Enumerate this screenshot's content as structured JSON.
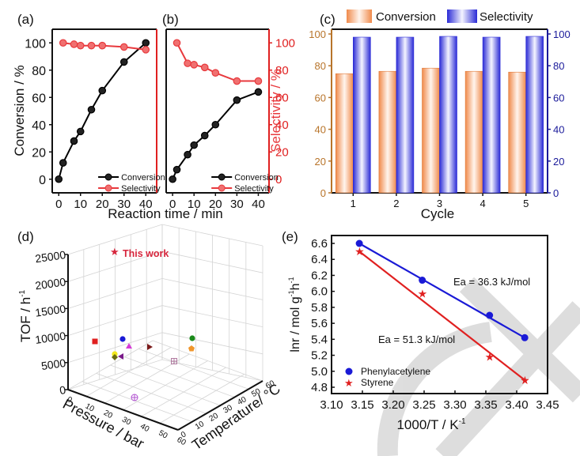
{
  "chart_data": [
    {
      "panel": "(a)",
      "type": "line",
      "xlabel": "Reaction time / min",
      "ylabel": "Conversion / %",
      "xlim": [
        -3,
        45
      ],
      "ylim": [
        -10,
        110
      ],
      "xticks": [
        0,
        10,
        20,
        30,
        40
      ],
      "yticks": [
        0,
        20,
        40,
        60,
        80,
        100
      ],
      "legend": "bottom-right",
      "series": [
        {
          "name": "Conversion",
          "color": "#000000",
          "x": [
            0,
            2,
            7,
            10,
            15,
            20,
            30,
            40
          ],
          "y": [
            0,
            12,
            28,
            35,
            51,
            65,
            86,
            100
          ]
        },
        {
          "name": "Selectivity",
          "color": "#e8393d",
          "x": [
            2,
            7,
            10,
            15,
            20,
            30,
            40
          ],
          "y": [
            100,
            99,
            98,
            98,
            98,
            97,
            95
          ]
        }
      ]
    },
    {
      "panel": "(b)",
      "type": "line",
      "xlabel": "Reaction time / min",
      "ylabel": "Selectivity / %",
      "xlim": [
        -3,
        45
      ],
      "ylim": [
        -10,
        110
      ],
      "xticks": [
        0,
        10,
        20,
        30,
        40
      ],
      "yticks": [
        0,
        20,
        40,
        60,
        80,
        100
      ],
      "legend": "bottom-right",
      "series": [
        {
          "name": "Conversion",
          "color": "#000000",
          "x": [
            0,
            2,
            7,
            10,
            15,
            20,
            30,
            40
          ],
          "y": [
            0,
            7,
            18,
            25,
            32,
            40,
            58,
            64
          ]
        },
        {
          "name": "Selectivity",
          "color": "#e8393d",
          "x": [
            2,
            7,
            10,
            15,
            20,
            30,
            40
          ],
          "y": [
            100,
            85,
            84,
            82,
            78,
            72,
            72
          ]
        }
      ]
    },
    {
      "panel": "(c)",
      "type": "bar",
      "xlabel": "Cycle",
      "ylabel_left": "",
      "ylabel_right": "",
      "categories": [
        "1",
        "2",
        "3",
        "4",
        "5"
      ],
      "ylim": [
        0,
        100
      ],
      "yticks": [
        0,
        20,
        40,
        60,
        80,
        100
      ],
      "legend": "top",
      "series": [
        {
          "name": "Conversion",
          "color": "#f08a4b",
          "values": [
            75,
            76.5,
            78.5,
            76.5,
            76
          ]
        },
        {
          "name": "Selectivity",
          "color": "#2b2bd6",
          "values": [
            98,
            98,
            98.5,
            98,
            98.5
          ]
        }
      ]
    },
    {
      "panel": "(d)",
      "type": "scatter",
      "projection": "3d",
      "xlabel": "Pressure / bar",
      "ylabel": "Temperature/ °C",
      "zlabel": "TOF / h⁻¹",
      "zticks": [
        "0",
        "5000",
        "10000",
        "15000",
        "20000",
        "25000"
      ],
      "xticks": [
        "0",
        "10",
        "20",
        "30",
        "40",
        "50",
        "60"
      ],
      "yticks": [
        "0",
        "10",
        "20",
        "30",
        "40",
        "50",
        "60"
      ],
      "annotation": "This work",
      "points": [
        {
          "marker": "star",
          "color": "#d7263d",
          "label": "This work"
        },
        {
          "marker": "square",
          "color": "#e02020"
        },
        {
          "marker": "circle",
          "color": "#1a1ad6"
        },
        {
          "marker": "triangle-up",
          "color": "#d63ad6"
        },
        {
          "marker": "triangle-right",
          "color": "#7a1a1a"
        },
        {
          "marker": "circle",
          "color": "#f2e81c"
        },
        {
          "marker": "diamond",
          "color": "#6b6b10"
        },
        {
          "marker": "triangle-left",
          "color": "#7a1a8a"
        },
        {
          "marker": "circle",
          "color": "#1b8a1b"
        },
        {
          "marker": "pentagon",
          "color": "#f0962b"
        },
        {
          "marker": "crossed-square",
          "color": "#b07aa0"
        },
        {
          "marker": "crossed-circle",
          "color": "#b050d0"
        }
      ]
    },
    {
      "panel": "(e)",
      "type": "scatter",
      "xlabel": "1000/T / K⁻¹",
      "ylabel": "lnr / mol g⁻¹h⁻¹",
      "xlim": [
        3.1,
        3.45
      ],
      "ylim": [
        4.7,
        6.7
      ],
      "xticks": [
        "3.10",
        "3.15",
        "3.20",
        "3.25",
        "3.30",
        "3.35",
        "3.40",
        "3.45"
      ],
      "yticks": [
        "4.8",
        "5.0",
        "5.2",
        "5.4",
        "5.6",
        "5.8",
        "6.0",
        "6.2",
        "6.4",
        "6.6"
      ],
      "legend": "bottom-left",
      "annotations": [
        "Ea = 36.3 kJ/mol",
        "Ea = 51.3 kJ/mol"
      ],
      "series": [
        {
          "name": "Phenylacetylene",
          "color": "#1a1ad6",
          "marker": "circle",
          "x": [
            3.145,
            3.247,
            3.356,
            3.413
          ],
          "y": [
            6.6,
            6.14,
            5.7,
            5.42
          ]
        },
        {
          "name": "Styrene",
          "color": "#e02020",
          "marker": "star",
          "x": [
            3.145,
            3.247,
            3.356,
            3.413
          ],
          "y": [
            6.5,
            5.97,
            5.18,
            4.89
          ]
        }
      ]
    }
  ],
  "labels": {
    "a": "(a)",
    "b": "(b)",
    "c": "(c)",
    "d": "(d)",
    "e": "(e)",
    "time_axis": "Reaction time / min",
    "conv_axis": "Conversion / %",
    "sel_axis": "Selectivity / %",
    "cycle": "Cycle",
    "this_work": "This work",
    "tof": "TOF / h",
    "tof_sup": "-1",
    "pressure": "Pressure / bar",
    "temperature": "Temperature/ °C",
    "e_x": "1000/T / K",
    "e_x_sup": "-1",
    "e_y": "lnr / mol g",
    "e_y_sup1": "-1",
    "e_y_mid": "h",
    "e_y_sup2": "-1",
    "ea1": "Ea = 36.3 kJ/mol",
    "ea2": "Ea = 51.3 kJ/mol",
    "leg_phenyl": "Phenylacetylene",
    "leg_styrene": "Styrene",
    "leg_conv": "Conversion",
    "leg_sel": "Selectivity"
  }
}
